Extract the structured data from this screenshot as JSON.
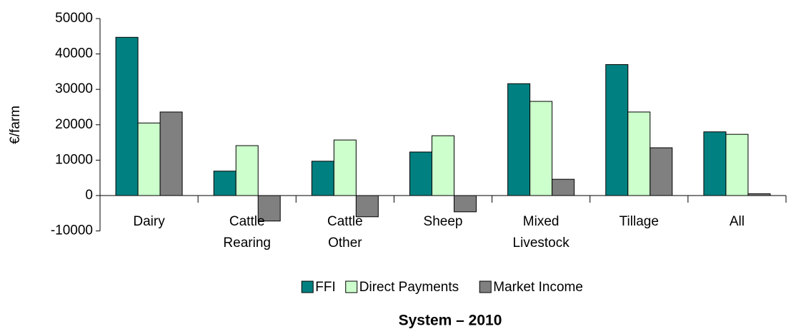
{
  "chart_data": {
    "type": "bar",
    "title": "System – 2010",
    "y_label": "€/farm",
    "categories": [
      "Dairy",
      "Cattle Rearing",
      "Cattle Other",
      "Sheep",
      "Mixed Livestock",
      "Tillage",
      "All"
    ],
    "series": [
      {
        "name": "FFI",
        "color": "#008080",
        "values": [
          44700,
          6900,
          9700,
          12300,
          31600,
          37000,
          18000
        ]
      },
      {
        "name": "Direct Payments",
        "color": "#ccffcc",
        "values": [
          20500,
          14100,
          15700,
          16900,
          26600,
          23600,
          17300
        ]
      },
      {
        "name": "Market Income",
        "color": "#808080",
        "values": [
          23600,
          -7200,
          -6000,
          -4600,
          4600,
          13500,
          500
        ]
      }
    ],
    "ylim": [
      -10000,
      50000
    ],
    "yticks": [
      -10000,
      0,
      10000,
      20000,
      30000,
      40000,
      50000
    ],
    "grid": false,
    "legend": "bottom"
  }
}
